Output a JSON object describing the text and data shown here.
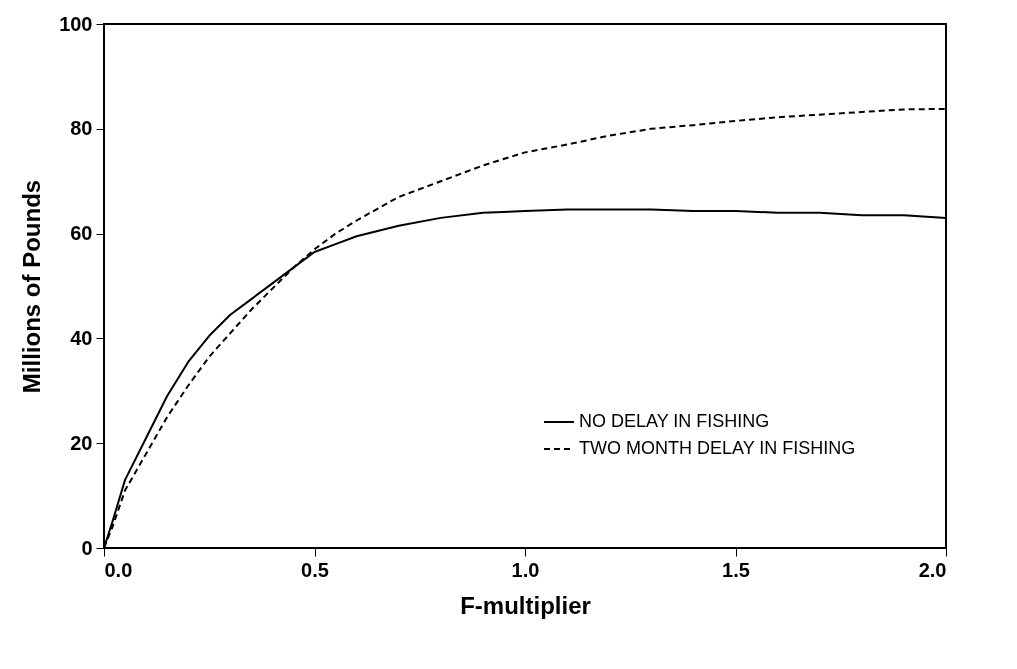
{
  "chart_data": {
    "type": "line",
    "xlabel": "F-multiplier",
    "ylabel": "Millions of Pounds",
    "x": [
      0,
      0.02,
      0.05,
      0.1,
      0.15,
      0.2,
      0.25,
      0.3,
      0.35,
      0.4,
      0.45,
      0.5,
      0.55,
      0.6,
      0.7,
      0.8,
      0.9,
      1.0,
      1.1,
      1.2,
      1.3,
      1.4,
      1.5,
      1.6,
      1.7,
      1.8,
      1.9,
      2.0
    ],
    "series": [
      {
        "name": "NO DELAY IN FISHING",
        "color": "#000000",
        "line_style": "solid",
        "values": [
          0,
          5,
          13,
          21,
          29,
          35.5,
          40.5,
          44.5,
          47.5,
          50.5,
          53.5,
          56.5,
          58,
          59.5,
          61.5,
          63,
          64,
          64.3,
          64.6,
          64.6,
          64.6,
          64.3,
          64.3,
          64,
          64,
          63.5,
          63.5,
          63
        ]
      },
      {
        "name": "TWO MONTH DELAY IN FISHING",
        "color": "#000000",
        "line_style": "dashed",
        "values": [
          0,
          4,
          11,
          18,
          25,
          31,
          36.5,
          41,
          45.5,
          49.5,
          53.5,
          57,
          60,
          62.5,
          67,
          70,
          73,
          75.5,
          77,
          78.7,
          80,
          80.7,
          81.5,
          82.2,
          82.7,
          83.2,
          83.7,
          83.8
        ]
      }
    ],
    "xlim": [
      0,
      2
    ],
    "ylim": [
      0,
      100
    ],
    "xticks": [
      {
        "value": 0,
        "label": "0.0"
      },
      {
        "value": 0.5,
        "label": "0.5"
      },
      {
        "value": 1,
        "label": "1.0"
      },
      {
        "value": 1.5,
        "label": "1.5"
      },
      {
        "value": 2,
        "label": "2.0"
      }
    ],
    "yticks": [
      0,
      20,
      40,
      60,
      80,
      100
    ],
    "legend": "right",
    "grid": false,
    "marker": "none"
  }
}
